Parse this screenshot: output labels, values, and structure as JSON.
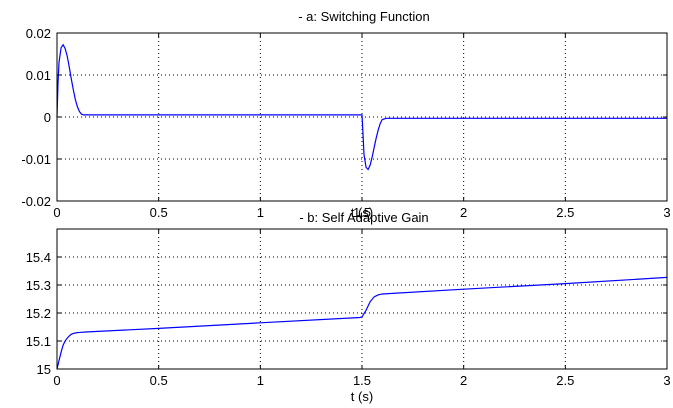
{
  "chart_data": [
    {
      "type": "line",
      "title": "- a: Switching Function",
      "xlabel": "t (s)",
      "ylabel": "",
      "xlim": [
        0,
        3
      ],
      "ylim": [
        -0.02,
        0.02
      ],
      "xticks": [
        "0",
        "0.5",
        "1",
        "1.5",
        "2",
        "2.5",
        "3"
      ],
      "yticks": [
        "-0.02",
        "-0.01",
        "0",
        "0.01",
        "0.02"
      ],
      "grid": true,
      "series_color": "#0000ff",
      "series": [
        {
          "x": [
            0,
            0.005,
            0.01,
            0.02,
            0.03,
            0.04,
            0.05,
            0.06,
            0.07,
            0.08,
            0.09,
            0.1,
            0.11,
            0.12,
            0.13,
            0.14,
            0.5,
            1.0,
            1.49,
            1.5,
            1.505,
            1.51,
            1.52,
            1.53,
            1.54,
            1.55,
            1.56,
            1.57,
            1.58,
            1.59,
            1.6,
            1.62,
            2.0,
            2.5,
            3.0
          ],
          "y": [
            0,
            0.008,
            0.013,
            0.0165,
            0.0172,
            0.0163,
            0.0145,
            0.012,
            0.0092,
            0.0065,
            0.0042,
            0.0025,
            0.0013,
            0.0007,
            0.0005,
            0.0005,
            0.0005,
            0.0005,
            0.0005,
            0.0005,
            -0.004,
            -0.009,
            -0.012,
            -0.0125,
            -0.0115,
            -0.0095,
            -0.0072,
            -0.005,
            -0.003,
            -0.0015,
            -0.0006,
            -0.0003,
            -0.0003,
            -0.0003,
            -0.0003
          ]
        }
      ]
    },
    {
      "type": "line",
      "title": "- b: Self Adaptive Gain",
      "xlabel": "t (s)",
      "ylabel": "",
      "xlim": [
        0,
        3
      ],
      "ylim": [
        15,
        15.5
      ],
      "xticks": [
        "0",
        "0.5",
        "1",
        "1.5",
        "2",
        "2.5",
        "3"
      ],
      "yticks": [
        "15",
        "15.1",
        "15.2",
        "15.3",
        "15.4"
      ],
      "ytick_values": [
        15,
        15.1,
        15.2,
        15.3,
        15.4
      ],
      "grid": true,
      "series_color": "#0000ff",
      "series": [
        {
          "x": [
            0,
            0.01,
            0.02,
            0.03,
            0.04,
            0.05,
            0.06,
            0.07,
            0.08,
            0.1,
            0.12,
            0.14,
            0.5,
            1.0,
            1.49,
            1.5,
            1.52,
            1.54,
            1.56,
            1.58,
            1.6,
            1.65,
            2.0,
            2.5,
            3.0
          ],
          "y": [
            15.0,
            15.03,
            15.06,
            15.085,
            15.1,
            15.11,
            15.118,
            15.124,
            15.127,
            15.13,
            15.131,
            15.132,
            15.145,
            15.165,
            15.184,
            15.186,
            15.21,
            15.24,
            15.258,
            15.265,
            15.268,
            15.27,
            15.285,
            15.305,
            15.327
          ]
        }
      ]
    }
  ]
}
